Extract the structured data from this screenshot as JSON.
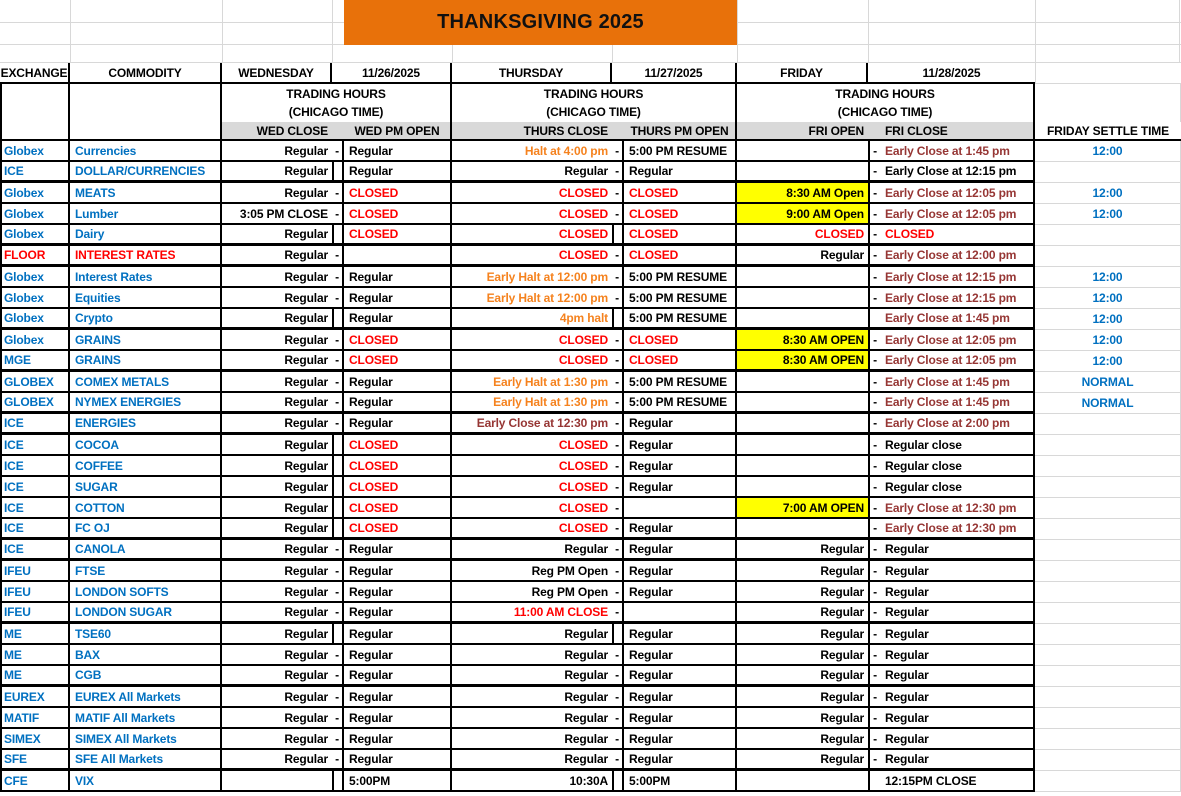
{
  "title": "THANKSGIVING 2025",
  "colors": {
    "banner_bg": "#E8710A",
    "subheader_bg": "#D9D9D9",
    "highlight_bg": "#FFFF00",
    "grid_faint": "#D8D8D8",
    "map": {
      "k": "#000000",
      "r": "#FF0000",
      "o": "#F5821E",
      "b": "#963634",
      "u": "#0070C0"
    }
  },
  "header": {
    "exchange": "EXCHANGE",
    "commodity": "COMMODITY",
    "wednesday": "WEDNESDAY",
    "wed_date": "11/26/2025",
    "thursday": "THURSDAY",
    "thu_date": "11/27/2025",
    "friday": "FRIDAY",
    "fri_date": "11/28/2025",
    "trading_hours": "TRADING HOURS",
    "chicago_time": "(CHICAGO TIME)",
    "wed_close": "WED CLOSE",
    "wed_pm_open": "WED PM OPEN",
    "thurs_close": "THURS CLOSE",
    "thurs_pm_open": "THURS PM OPEN",
    "fri_open": "FRI OPEN",
    "fri_close": "FRI CLOSE",
    "friday_settle": "FRIDAY SETTLE TIME"
  },
  "rows": [
    {
      "ex": [
        "Globex",
        "u"
      ],
      "com": [
        "Currencies",
        "u"
      ],
      "wc": [
        "Regular",
        "k"
      ],
      "wd": 1,
      "wo": [
        "Regular",
        "k"
      ],
      "tc": [
        "Halt at 4:00 pm",
        "o"
      ],
      "td": 1,
      "to": [
        "5:00 PM RESUME",
        "k"
      ],
      "fo": [
        "",
        "k",
        0
      ],
      "fd": 1,
      "fc": [
        "Early Close at 1:45 pm",
        "b"
      ],
      "st": "12:00",
      "tb": 0
    },
    {
      "ex": [
        "ICE",
        "u"
      ],
      "com": [
        "DOLLAR/CURRENCIES",
        "u"
      ],
      "wc": [
        "Regular",
        "k"
      ],
      "wd": 0,
      "wo": [
        "Regular",
        "k"
      ],
      "tc": [
        "Regular",
        "k"
      ],
      "td": 1,
      "to": [
        "Regular",
        "k"
      ],
      "fo": [
        "",
        "k",
        0
      ],
      "fd": 1,
      "fc": [
        "Early Close at 12:15 pm",
        "k"
      ],
      "st": "",
      "tb": 1
    },
    {
      "ex": [
        "Globex",
        "u"
      ],
      "com": [
        "MEATS",
        "u"
      ],
      "wc": [
        "Regular",
        "k"
      ],
      "wd": 1,
      "wo": [
        "CLOSED",
        "r"
      ],
      "tc": [
        "CLOSED",
        "r"
      ],
      "td": 1,
      "to": [
        "CLOSED",
        "r"
      ],
      "fo": [
        "8:30 AM Open",
        "k",
        1
      ],
      "fd": 1,
      "fc": [
        "Early Close at 12:05 pm",
        "b"
      ],
      "st": "12:00",
      "tb": 0
    },
    {
      "ex": [
        "Globex",
        "u"
      ],
      "com": [
        "Lumber",
        "u"
      ],
      "wc": [
        "3:05 PM CLOSE",
        "k"
      ],
      "wd": 1,
      "wo": [
        "CLOSED",
        "r"
      ],
      "tc": [
        "CLOSED",
        "r"
      ],
      "td": 1,
      "to": [
        "CLOSED",
        "r"
      ],
      "fo": [
        "9:00 AM Open",
        "k",
        1
      ],
      "fd": 1,
      "fc": [
        "Early Close at 12:05 pm",
        "b"
      ],
      "st": "12:00",
      "tb": 0
    },
    {
      "ex": [
        "Globex",
        "u"
      ],
      "com": [
        "Dairy",
        "u"
      ],
      "wc": [
        "Regular",
        "k"
      ],
      "wd": 0,
      "wo": [
        "CLOSED",
        "r"
      ],
      "tc": [
        "CLOSED",
        "r"
      ],
      "td": 0,
      "to": [
        "CLOSED",
        "r"
      ],
      "fo": [
        "CLOSED",
        "r",
        0
      ],
      "fd": 1,
      "fc": [
        "CLOSED",
        "r"
      ],
      "st": "",
      "tb": 1
    },
    {
      "ex": [
        "FLOOR",
        "r"
      ],
      "com": [
        "INTEREST RATES",
        "r"
      ],
      "wc": [
        "Regular",
        "k"
      ],
      "wd": 1,
      "wo": [
        "",
        "k"
      ],
      "tc": [
        "CLOSED",
        "r"
      ],
      "td": 1,
      "to": [
        "CLOSED",
        "r"
      ],
      "fo": [
        "Regular",
        "k",
        0
      ],
      "fd": 1,
      "fc": [
        "Early Close at 12:00 pm",
        "b"
      ],
      "st": "",
      "tb": 1
    },
    {
      "ex": [
        "Globex",
        "u"
      ],
      "com": [
        "Interest Rates",
        "u"
      ],
      "wc": [
        "Regular",
        "k"
      ],
      "wd": 1,
      "wo": [
        "Regular",
        "k"
      ],
      "tc": [
        "Early Halt at 12:00 pm",
        "o"
      ],
      "td": 1,
      "to": [
        "5:00 PM RESUME",
        "k"
      ],
      "fo": [
        "",
        "k",
        0
      ],
      "fd": 1,
      "fc": [
        "Early Close at 12:15 pm",
        "b"
      ],
      "st": "12:00",
      "tb": 0
    },
    {
      "ex": [
        "Globex",
        "u"
      ],
      "com": [
        "Equities",
        "u"
      ],
      "wc": [
        "Regular",
        "k"
      ],
      "wd": 1,
      "wo": [
        "Regular",
        "k"
      ],
      "tc": [
        "Early Halt at 12:00 pm",
        "o"
      ],
      "td": 1,
      "to": [
        "5:00 PM RESUME",
        "k"
      ],
      "fo": [
        "",
        "k",
        0
      ],
      "fd": 1,
      "fc": [
        "Early Close at 12:15 pm",
        "b"
      ],
      "st": "12:00",
      "tb": 0
    },
    {
      "ex": [
        "Globex",
        "u"
      ],
      "com": [
        "Crypto",
        "u"
      ],
      "wc": [
        "Regular",
        "k"
      ],
      "wd": 0,
      "wo": [
        "Regular",
        "k"
      ],
      "tc": [
        "4pm halt",
        "o"
      ],
      "td": 0,
      "to": [
        "5:00 PM RESUME",
        "k"
      ],
      "fo": [
        "",
        "k",
        0
      ],
      "fd": 0,
      "fc": [
        "Early Close at 1:45 pm",
        "b"
      ],
      "st": "12:00",
      "tb": 1
    },
    {
      "ex": [
        "Globex",
        "u"
      ],
      "com": [
        "GRAINS",
        "u"
      ],
      "wc": [
        "Regular",
        "k"
      ],
      "wd": 1,
      "wo": [
        "CLOSED",
        "r"
      ],
      "tc": [
        "CLOSED",
        "r"
      ],
      "td": 1,
      "to": [
        "CLOSED",
        "r"
      ],
      "fo": [
        "8:30 AM OPEN",
        "k",
        1
      ],
      "fd": 1,
      "fc": [
        "Early Close at 12:05 pm",
        "b"
      ],
      "st": "12:00",
      "tb": 0
    },
    {
      "ex": [
        "MGE",
        "u"
      ],
      "com": [
        "GRAINS",
        "u"
      ],
      "wc": [
        "Regular",
        "k"
      ],
      "wd": 1,
      "wo": [
        "CLOSED",
        "r"
      ],
      "tc": [
        "CLOSED",
        "r"
      ],
      "td": 1,
      "to": [
        "CLOSED",
        "r"
      ],
      "fo": [
        "8:30 AM OPEN",
        "k",
        1
      ],
      "fd": 1,
      "fc": [
        "Early Close at 12:05 pm",
        "b"
      ],
      "st": "12:00",
      "tb": 1
    },
    {
      "ex": [
        "GLOBEX",
        "u"
      ],
      "com": [
        "COMEX METALS",
        "u"
      ],
      "wc": [
        "Regular",
        "k"
      ],
      "wd": 1,
      "wo": [
        "Regular",
        "k"
      ],
      "tc": [
        "Early Halt at 1:30 pm",
        "o"
      ],
      "td": 1,
      "to": [
        "5:00 PM RESUME",
        "k"
      ],
      "fo": [
        "",
        "k",
        0
      ],
      "fd": 1,
      "fc": [
        "Early Close at 1:45 pm",
        "b"
      ],
      "st": "NORMAL",
      "tb": 0
    },
    {
      "ex": [
        "GLOBEX",
        "u"
      ],
      "com": [
        "NYMEX ENERGIES",
        "u"
      ],
      "wc": [
        "Regular",
        "k"
      ],
      "wd": 1,
      "wo": [
        "Regular",
        "k"
      ],
      "tc": [
        "Early Halt at 1:30 pm",
        "o"
      ],
      "td": 1,
      "to": [
        "5:00 PM RESUME",
        "k"
      ],
      "fo": [
        "",
        "k",
        0
      ],
      "fd": 1,
      "fc": [
        "Early Close at 1:45 pm",
        "b"
      ],
      "st": "NORMAL",
      "tb": 1
    },
    {
      "ex": [
        "ICE",
        "u"
      ],
      "com": [
        "ENERGIES",
        "u"
      ],
      "wc": [
        "Regular",
        "k"
      ],
      "wd": 1,
      "wo": [
        "Regular",
        "k"
      ],
      "tc": [
        "Early Close at 12:30 pm",
        "b"
      ],
      "td": 1,
      "to": [
        "Regular",
        "k"
      ],
      "fo": [
        "",
        "k",
        0
      ],
      "fd": 1,
      "fc": [
        "Early Close at 2:00 pm",
        "b"
      ],
      "st": "",
      "tb": 1
    },
    {
      "ex": [
        "ICE",
        "u"
      ],
      "com": [
        "COCOA",
        "u"
      ],
      "wc": [
        "Regular",
        "k"
      ],
      "wd": 0,
      "wo": [
        "CLOSED",
        "r"
      ],
      "tc": [
        "CLOSED",
        "r"
      ],
      "td": 1,
      "to": [
        "Regular",
        "k"
      ],
      "fo": [
        "",
        "k",
        0
      ],
      "fd": 1,
      "fc": [
        "Regular close",
        "k"
      ],
      "st": "",
      "tb": 0
    },
    {
      "ex": [
        "ICE",
        "u"
      ],
      "com": [
        "COFFEE",
        "u"
      ],
      "wc": [
        "Regular",
        "k"
      ],
      "wd": 0,
      "wo": [
        "CLOSED",
        "r"
      ],
      "tc": [
        "CLOSED",
        "r"
      ],
      "td": 1,
      "to": [
        "Regular",
        "k"
      ],
      "fo": [
        "",
        "k",
        0
      ],
      "fd": 1,
      "fc": [
        "Regular close",
        "k"
      ],
      "st": "",
      "tb": 0
    },
    {
      "ex": [
        "ICE",
        "u"
      ],
      "com": [
        "SUGAR",
        "u"
      ],
      "wc": [
        "Regular",
        "k"
      ],
      "wd": 0,
      "wo": [
        "CLOSED",
        "r"
      ],
      "tc": [
        "CLOSED",
        "r"
      ],
      "td": 1,
      "to": [
        "Regular",
        "k"
      ],
      "fo": [
        "",
        "k",
        0
      ],
      "fd": 1,
      "fc": [
        "Regular close",
        "k"
      ],
      "st": "",
      "tb": 0
    },
    {
      "ex": [
        "ICE",
        "u"
      ],
      "com": [
        "COTTON",
        "u"
      ],
      "wc": [
        "Regular",
        "k"
      ],
      "wd": 0,
      "wo": [
        "CLOSED",
        "r"
      ],
      "tc": [
        "CLOSED",
        "r"
      ],
      "td": 1,
      "to": [
        "",
        "k"
      ],
      "fo": [
        "7:00 AM OPEN",
        "k",
        1
      ],
      "fd": 1,
      "fc": [
        "Early Close at 12:30 pm",
        "b"
      ],
      "st": "",
      "tb": 0
    },
    {
      "ex": [
        "ICE",
        "u"
      ],
      "com": [
        "FC OJ",
        "u"
      ],
      "wc": [
        "Regular",
        "k"
      ],
      "wd": 0,
      "wo": [
        "CLOSED",
        "r"
      ],
      "tc": [
        "CLOSED",
        "r"
      ],
      "td": 1,
      "to": [
        "Regular",
        "k"
      ],
      "fo": [
        "",
        "k",
        0
      ],
      "fd": 1,
      "fc": [
        "Early Close at 12:30 pm",
        "b"
      ],
      "st": "",
      "tb": 1
    },
    {
      "ex": [
        "ICE",
        "u"
      ],
      "com": [
        "CANOLA",
        "u"
      ],
      "wc": [
        "Regular",
        "k"
      ],
      "wd": 1,
      "wo": [
        "Regular",
        "k"
      ],
      "tc": [
        "Regular",
        "k"
      ],
      "td": 1,
      "to": [
        "Regular",
        "k"
      ],
      "fo": [
        "Regular",
        "k",
        0
      ],
      "fd": 1,
      "fc": [
        "Regular",
        "k"
      ],
      "st": "",
      "tb": 1
    },
    {
      "ex": [
        "IFEU",
        "u"
      ],
      "com": [
        "FTSE",
        "u"
      ],
      "wc": [
        "Regular",
        "k"
      ],
      "wd": 1,
      "wo": [
        "Regular",
        "k"
      ],
      "tc": [
        "Reg PM Open",
        "k"
      ],
      "td": 1,
      "to": [
        "Regular",
        "k"
      ],
      "fo": [
        "Regular",
        "k",
        0
      ],
      "fd": 1,
      "fc": [
        "Regular",
        "k"
      ],
      "st": "",
      "tb": 0
    },
    {
      "ex": [
        "IFEU",
        "u"
      ],
      "com": [
        "LONDON SOFTS",
        "u"
      ],
      "wc": [
        "Regular",
        "k"
      ],
      "wd": 1,
      "wo": [
        "Regular",
        "k"
      ],
      "tc": [
        "Reg PM Open",
        "k"
      ],
      "td": 1,
      "to": [
        "Regular",
        "k"
      ],
      "fo": [
        "Regular",
        "k",
        0
      ],
      "fd": 1,
      "fc": [
        "Regular",
        "k"
      ],
      "st": "",
      "tb": 0
    },
    {
      "ex": [
        "IFEU",
        "u"
      ],
      "com": [
        "LONDON SUGAR",
        "u"
      ],
      "wc": [
        "Regular",
        "k"
      ],
      "wd": 1,
      "wo": [
        "Regular",
        "k"
      ],
      "tc": [
        "11:00 AM CLOSE",
        "r"
      ],
      "td": 1,
      "to": [
        "",
        "k"
      ],
      "fo": [
        "Regular",
        "k",
        0
      ],
      "fd": 1,
      "fc": [
        "Regular",
        "k"
      ],
      "st": "",
      "tb": 1
    },
    {
      "ex": [
        "ME",
        "u"
      ],
      "com": [
        "TSE60",
        "u"
      ],
      "wc": [
        "Regular",
        "k"
      ],
      "wd": 0,
      "wo": [
        "Regular",
        "k"
      ],
      "tc": [
        "Regular",
        "k"
      ],
      "td": 0,
      "to": [
        "Regular",
        "k"
      ],
      "fo": [
        "Regular",
        "k",
        0
      ],
      "fd": 1,
      "fc": [
        "Regular",
        "k"
      ],
      "st": "",
      "tb": 0
    },
    {
      "ex": [
        "ME",
        "u"
      ],
      "com": [
        "BAX",
        "u"
      ],
      "wc": [
        "Regular",
        "k"
      ],
      "wd": 1,
      "wo": [
        "Regular",
        "k"
      ],
      "tc": [
        "Regular",
        "k"
      ],
      "td": 1,
      "to": [
        "Regular",
        "k"
      ],
      "fo": [
        "Regular",
        "k",
        0
      ],
      "fd": 1,
      "fc": [
        "Regular",
        "k"
      ],
      "st": "",
      "tb": 0
    },
    {
      "ex": [
        "ME",
        "u"
      ],
      "com": [
        "CGB",
        "u"
      ],
      "wc": [
        "Regular",
        "k"
      ],
      "wd": 1,
      "wo": [
        "Regular",
        "k"
      ],
      "tc": [
        "Regular",
        "k"
      ],
      "td": 1,
      "to": [
        "Regular",
        "k"
      ],
      "fo": [
        "Regular",
        "k",
        0
      ],
      "fd": 1,
      "fc": [
        "Regular",
        "k"
      ],
      "st": "",
      "tb": 1
    },
    {
      "ex": [
        "EUREX",
        "u"
      ],
      "com": [
        "EUREX All Markets",
        "u"
      ],
      "wc": [
        "Regular",
        "k"
      ],
      "wd": 1,
      "wo": [
        "Regular",
        "k"
      ],
      "tc": [
        "Regular",
        "k"
      ],
      "td": 1,
      "to": [
        "Regular",
        "k"
      ],
      "fo": [
        "Regular",
        "k",
        0
      ],
      "fd": 1,
      "fc": [
        "Regular",
        "k"
      ],
      "st": "",
      "tb": 0
    },
    {
      "ex": [
        "MATIF",
        "u"
      ],
      "com": [
        "MATIF All Markets",
        "u"
      ],
      "wc": [
        "Regular",
        "k"
      ],
      "wd": 1,
      "wo": [
        "Regular",
        "k"
      ],
      "tc": [
        "Regular",
        "k"
      ],
      "td": 1,
      "to": [
        "Regular",
        "k"
      ],
      "fo": [
        "Regular",
        "k",
        0
      ],
      "fd": 1,
      "fc": [
        "Regular",
        "k"
      ],
      "st": "",
      "tb": 0
    },
    {
      "ex": [
        "SIMEX",
        "u"
      ],
      "com": [
        "SIMEX All Markets",
        "u"
      ],
      "wc": [
        "Regular",
        "k"
      ],
      "wd": 1,
      "wo": [
        "Regular",
        "k"
      ],
      "tc": [
        "Regular",
        "k"
      ],
      "td": 1,
      "to": [
        "Regular",
        "k"
      ],
      "fo": [
        "Regular",
        "k",
        0
      ],
      "fd": 1,
      "fc": [
        "Regular",
        "k"
      ],
      "st": "",
      "tb": 0
    },
    {
      "ex": [
        "SFE",
        "u"
      ],
      "com": [
        "SFE All Markets",
        "u"
      ],
      "wc": [
        "Regular",
        "k"
      ],
      "wd": 1,
      "wo": [
        "Regular",
        "k"
      ],
      "tc": [
        "Regular",
        "k"
      ],
      "td": 1,
      "to": [
        "Regular",
        "k"
      ],
      "fo": [
        "Regular",
        "k",
        0
      ],
      "fd": 1,
      "fc": [
        "Regular",
        "k"
      ],
      "st": "",
      "tb": 1
    },
    {
      "ex": [
        "CFE",
        "u"
      ],
      "com": [
        "VIX",
        "u"
      ],
      "wc": [
        "",
        "k"
      ],
      "wd": 0,
      "wo": [
        "5:00PM",
        "k"
      ],
      "tc": [
        "10:30A",
        "k"
      ],
      "td": 0,
      "to": [
        "5:00PM",
        "k"
      ],
      "fo": [
        "",
        "k",
        0
      ],
      "fd": 0,
      "fc": [
        "12:15PM CLOSE",
        "k"
      ],
      "st": "",
      "tb": 0
    }
  ]
}
